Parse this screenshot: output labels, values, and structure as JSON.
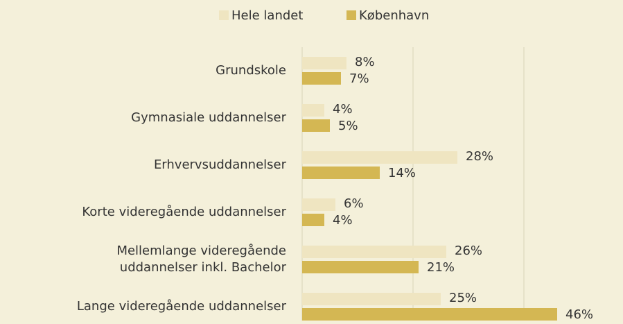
{
  "chart_data": {
    "type": "hbar",
    "categories": [
      "Grundskole",
      "Gymnasiale uddannelser",
      "Erhvervsuddannelser",
      "Korte videregående uddannelser",
      "Mellemlange videregående\nuddannelser inkl. Bachelor",
      "Lange videregående uddannelser"
    ],
    "series": [
      {
        "name": "Hele landet",
        "color": "#efe5c1",
        "values": [
          8,
          4,
          28,
          6,
          26,
          25
        ],
        "value_labels": [
          "8%",
          "4%",
          "28%",
          "6%",
          "26%",
          "25%"
        ]
      },
      {
        "name": "København",
        "color": "#d4b753",
        "values": [
          7,
          5,
          14,
          4,
          21,
          46
        ],
        "value_labels": [
          "7%",
          "5%",
          "14%",
          "4%",
          "21%",
          "46%"
        ]
      }
    ],
    "xlim": [
      0,
      57
    ],
    "xticks": [
      0,
      20,
      40
    ],
    "grid": true,
    "legend": "top"
  }
}
